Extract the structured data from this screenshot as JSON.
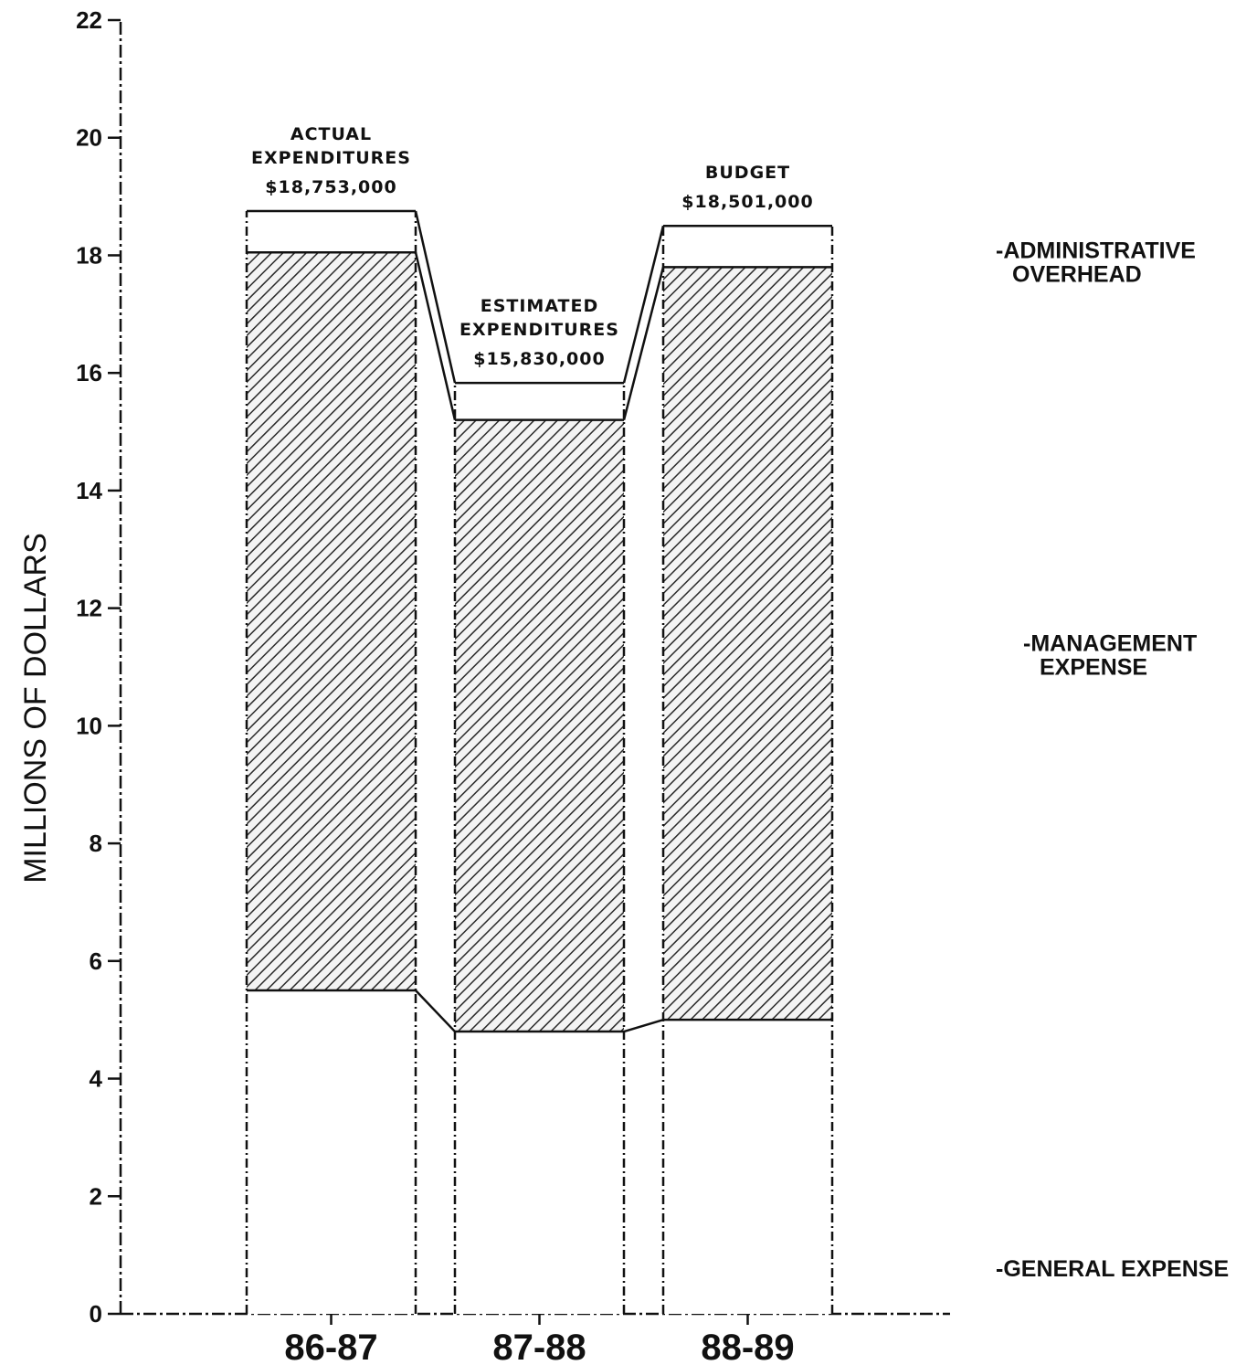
{
  "chart_data": {
    "type": "bar",
    "stacked": true,
    "ylabel": "MILLIONS OF DOLLARS",
    "ylim": [
      0,
      22
    ],
    "yticks": [
      0,
      2,
      4,
      6,
      8,
      10,
      12,
      14,
      16,
      18,
      20,
      22
    ],
    "grid": false,
    "categories": [
      "86-87",
      "87-88",
      "88-89"
    ],
    "series": [
      {
        "name": "-GENERAL EXPENSE",
        "values": [
          5.5,
          4.8,
          5.0
        ],
        "fill": "#ffffff"
      },
      {
        "name": "-MANAGEMENT EXPENSE",
        "values": [
          12.55,
          10.4,
          12.8
        ],
        "fill": "hatched"
      },
      {
        "name": "-ADMINISTRATIVE OVERHEAD",
        "values": [
          0.703,
          0.63,
          0.701
        ],
        "fill": "#ffffff"
      }
    ],
    "totals": [
      18.753,
      15.83,
      18.501
    ],
    "bar_annotations": [
      {
        "lines": [
          "ACTUAL",
          "EXPENDITURES",
          "$18,753,000"
        ]
      },
      {
        "lines": [
          "ESTIMATED",
          "EXPENDITURES",
          "$15,830,000"
        ]
      },
      {
        "lines": [
          "BUDGET",
          "$18,501,000"
        ]
      }
    ],
    "legend_placement": "right"
  }
}
